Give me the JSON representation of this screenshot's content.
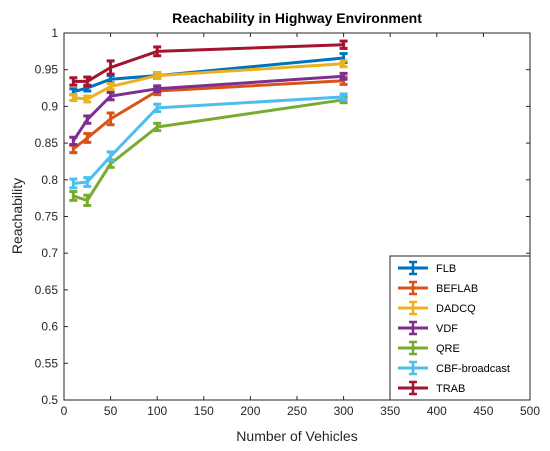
{
  "chart_data": {
    "type": "line",
    "title": "Reachability in Highway Environment",
    "xlabel": "Number of Vehicles",
    "ylabel": "Reachability",
    "xlim": [
      0,
      500
    ],
    "ylim": [
      0.5,
      1
    ],
    "xticks": [
      0,
      50,
      100,
      150,
      200,
      250,
      300,
      350,
      400,
      450,
      500
    ],
    "yticks": [
      0.5,
      0.55,
      0.6,
      0.65,
      0.7,
      0.75,
      0.8,
      0.85,
      0.9,
      0.95,
      1
    ],
    "ytick_labels": [
      "0.5",
      "0.55",
      "0.6",
      "0.65",
      "0.7",
      "0.75",
      "0.8",
      "0.85",
      "0.9",
      "0.95",
      "1"
    ],
    "grid": false,
    "legend_position": "bottom-right",
    "error_bars": true,
    "x": [
      10,
      25,
      50,
      100,
      300
    ],
    "series": [
      {
        "name": "FLB",
        "color": "#0072BD",
        "values": [
          0.92,
          0.925,
          0.937,
          0.942,
          0.966
        ],
        "errors": [
          0.004,
          0.004,
          0.005,
          0.004,
          0.006
        ]
      },
      {
        "name": "BEFLAB",
        "color": "#D95319",
        "values": [
          0.842,
          0.857,
          0.883,
          0.921,
          0.935
        ],
        "errors": [
          0.005,
          0.006,
          0.008,
          0.005,
          0.005
        ]
      },
      {
        "name": "DADCQ",
        "color": "#EDB120",
        "values": [
          0.912,
          0.91,
          0.927,
          0.942,
          0.958
        ],
        "errors": [
          0.004,
          0.004,
          0.004,
          0.004,
          0.004
        ]
      },
      {
        "name": "VDF",
        "color": "#7E2F8E",
        "values": [
          0.853,
          0.882,
          0.914,
          0.924,
          0.941
        ],
        "errors": [
          0.005,
          0.005,
          0.005,
          0.004,
          0.004
        ]
      },
      {
        "name": "QRE",
        "color": "#77AC30",
        "values": [
          0.778,
          0.772,
          0.822,
          0.872,
          0.909
        ],
        "errors": [
          0.006,
          0.007,
          0.005,
          0.005,
          0.004
        ]
      },
      {
        "name": "CBF-broadcast",
        "color": "#4DBEEE",
        "values": [
          0.795,
          0.797,
          0.832,
          0.898,
          0.913
        ],
        "errors": [
          0.006,
          0.006,
          0.006,
          0.005,
          0.004
        ]
      },
      {
        "name": "TRAB",
        "color": "#A2142F",
        "values": [
          0.934,
          0.934,
          0.953,
          0.975,
          0.984
        ],
        "errors": [
          0.005,
          0.006,
          0.009,
          0.006,
          0.005
        ]
      }
    ]
  }
}
